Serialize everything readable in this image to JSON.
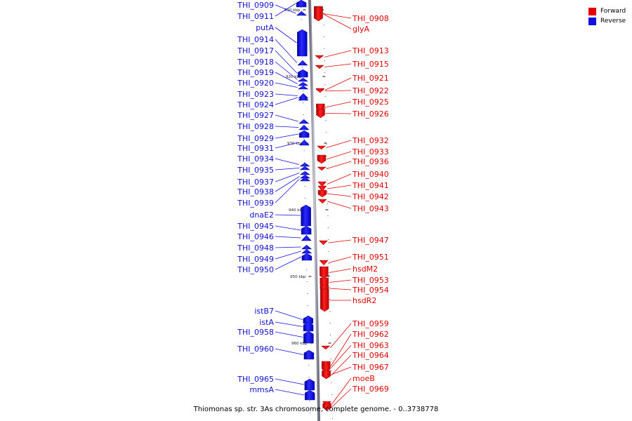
{
  "title": "Thiomonas sp. str. 3As chromosome, complete genome. - 0..3738778",
  "legend": [
    {
      "label": "Forward",
      "color": "#e00000"
    },
    {
      "label": "Reverse",
      "color": "#1010e0"
    }
  ],
  "colors": {
    "forward": "#e00000",
    "reverse": "#1010e0",
    "backbone": "#8a8a9a"
  },
  "ticks": [
    "910 kbp",
    "920 kbp",
    "930 kbp",
    "940 kbp",
    "950 kbp",
    "960 kbp"
  ],
  "forward_genes": [
    {
      "name": "THI_0908"
    },
    {
      "name": "glyA"
    },
    {
      "name": "THI_0913"
    },
    {
      "name": "THI_0915"
    },
    {
      "name": "THI_0921"
    },
    {
      "name": "THI_0922"
    },
    {
      "name": "THI_0925"
    },
    {
      "name": "THI_0926"
    },
    {
      "name": "THI_0932"
    },
    {
      "name": "THI_0933"
    },
    {
      "name": "THI_0936"
    },
    {
      "name": "THI_0940"
    },
    {
      "name": "THI_0941"
    },
    {
      "name": "THI_0942"
    },
    {
      "name": "THI_0943"
    },
    {
      "name": "THI_0947"
    },
    {
      "name": "THI_0951"
    },
    {
      "name": "hsdM2"
    },
    {
      "name": "THI_0953"
    },
    {
      "name": "THI_0954"
    },
    {
      "name": "hsdR2"
    },
    {
      "name": "THI_0959"
    },
    {
      "name": "THI_0962"
    },
    {
      "name": "THI_0963"
    },
    {
      "name": "THI_0964"
    },
    {
      "name": "THI_0967"
    },
    {
      "name": "moeB"
    },
    {
      "name": "THI_0969"
    }
  ],
  "reverse_genes": [
    {
      "name": "THI_0909"
    },
    {
      "name": "THI_0911"
    },
    {
      "name": "putA"
    },
    {
      "name": "THI_0914"
    },
    {
      "name": "THI_0917"
    },
    {
      "name": "THI_0918"
    },
    {
      "name": "THI_0919"
    },
    {
      "name": "THI_0920"
    },
    {
      "name": "THI_0923"
    },
    {
      "name": "THI_0924"
    },
    {
      "name": "THI_0927"
    },
    {
      "name": "THI_0928"
    },
    {
      "name": "THI_0929"
    },
    {
      "name": "THI_0931"
    },
    {
      "name": "THI_0934"
    },
    {
      "name": "THI_0935"
    },
    {
      "name": "THI_0937"
    },
    {
      "name": "THI_0938"
    },
    {
      "name": "THI_0939"
    },
    {
      "name": "dnaE2"
    },
    {
      "name": "THI_0945"
    },
    {
      "name": "THI_0946"
    },
    {
      "name": "THI_0948"
    },
    {
      "name": "THI_0949"
    },
    {
      "name": "THI_0950"
    },
    {
      "name": "istB7"
    },
    {
      "name": "istA"
    },
    {
      "name": "THI_0958"
    },
    {
      "name": "THI_0960"
    },
    {
      "name": "THI_0965"
    },
    {
      "name": "mmsA"
    }
  ]
}
